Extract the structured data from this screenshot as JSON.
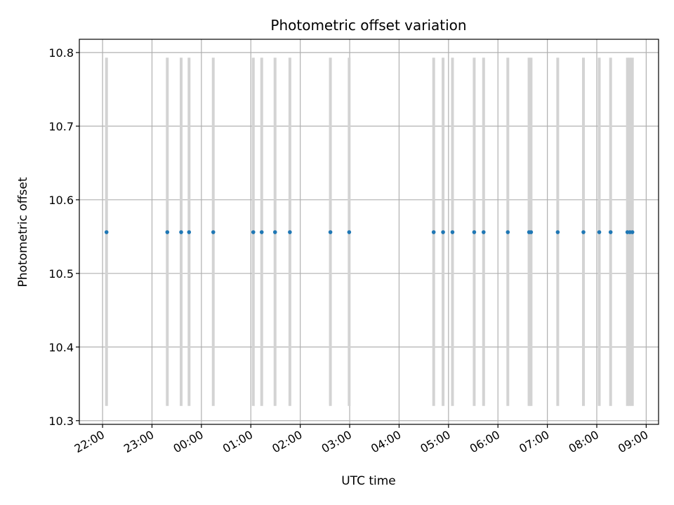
{
  "chart_data": {
    "type": "scatter",
    "title": "Photometric offset variation",
    "xlabel": "UTC time",
    "ylabel": "Photometric offset",
    "xlim_hours": [
      21.53,
      33.25
    ],
    "ylim": [
      10.295,
      10.818
    ],
    "x_ticks": [
      {
        "hour": 22,
        "label": "22:00"
      },
      {
        "hour": 23,
        "label": "23:00"
      },
      {
        "hour": 24,
        "label": "00:00"
      },
      {
        "hour": 25,
        "label": "01:00"
      },
      {
        "hour": 26,
        "label": "02:00"
      },
      {
        "hour": 27,
        "label": "03:00"
      },
      {
        "hour": 28,
        "label": "04:00"
      },
      {
        "hour": 29,
        "label": "05:00"
      },
      {
        "hour": 30,
        "label": "06:00"
      },
      {
        "hour": 31,
        "label": "07:00"
      },
      {
        "hour": 32,
        "label": "08:00"
      },
      {
        "hour": 33,
        "label": "09:00"
      }
    ],
    "y_ticks": [
      {
        "value": 10.3,
        "label": "10.3"
      },
      {
        "value": 10.4,
        "label": "10.4"
      },
      {
        "value": 10.5,
        "label": "10.5"
      },
      {
        "value": 10.6,
        "label": "10.6"
      },
      {
        "value": 10.7,
        "label": "10.7"
      },
      {
        "value": 10.8,
        "label": "10.8"
      }
    ],
    "grid": true,
    "series": [
      {
        "marker_color": "#1f77b4",
        "errorbar_color": "#d3d3d3",
        "y_value": 10.556,
        "errorbar_range": [
          10.32,
          10.793
        ],
        "x_hours": [
          22.08,
          23.31,
          23.59,
          23.75,
          24.24,
          25.05,
          25.22,
          25.49,
          25.79,
          26.61,
          26.99,
          28.7,
          28.89,
          29.08,
          29.52,
          29.71,
          30.2,
          30.63,
          30.67,
          31.21,
          31.73,
          32.05,
          32.28,
          32.62,
          32.67,
          32.72
        ]
      }
    ]
  }
}
